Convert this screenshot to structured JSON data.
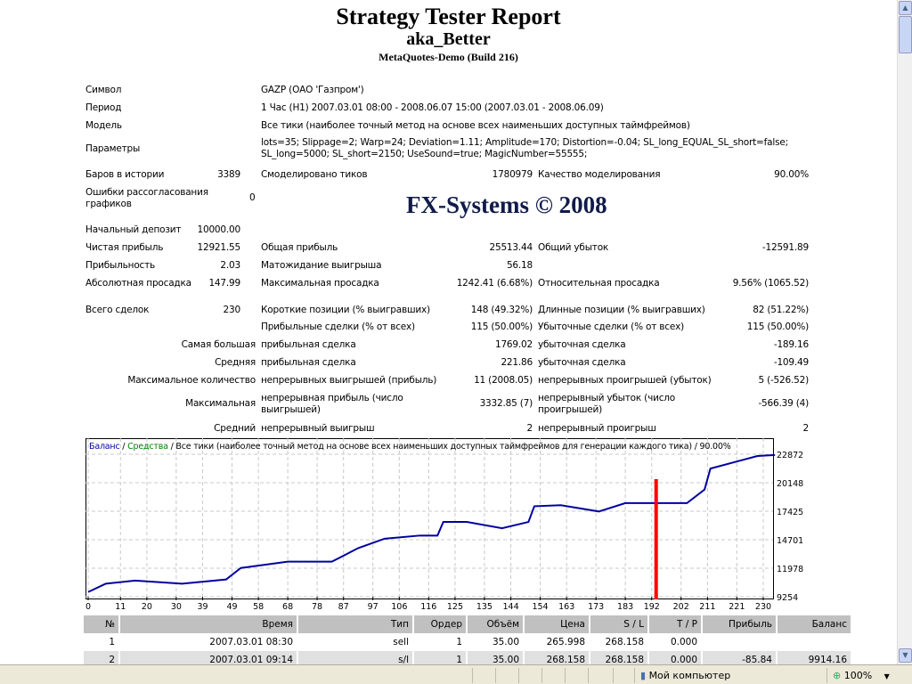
{
  "header": {
    "title": "Strategy Tester Report",
    "expert": "aka_Better",
    "server": "MetaQuotes-Demo (Build 216)",
    "watermark": "FX-Systems © 2008"
  },
  "info": {
    "symbol_label": "Символ",
    "symbol": "GAZP (ОАО 'Газпром')",
    "period_label": "Период",
    "period": "1 Час (H1) 2007.03.01 08:00 - 2008.06.07 15:00 (2007.03.01 - 2008.06.09)",
    "model_label": "Модель",
    "model": "Все тики (наиболее точный метод на основе всех наименьших доступных таймфреймов)",
    "params_label": "Параметры",
    "params1": "lots=35; Slippage=2; Warp=24; Deviation=1.11; Amplitude=170; Distortion=-0.04; SL_long_EQUAL_SL_short=false;",
    "params2": "SL_long=5000; SL_short=2150; UseSound=true; MagicNumber=55555;"
  },
  "stats": [
    {
      "y": 196,
      "c": [
        [
          "Баров в истории",
          "3389"
        ],
        [
          "Смоделировано тиков",
          "1780979"
        ],
        [
          "Качество моделирования",
          "90.00%"
        ]
      ]
    },
    {
      "y": 258,
      "c": [
        [
          "Начальный депозит",
          "10000.00"
        ]
      ]
    },
    {
      "y": 278,
      "c": [
        [
          "Чистая прибыль",
          "12921.55"
        ],
        [
          "Общая прибыль",
          "25513.44"
        ],
        [
          "Общий убыток",
          "-12591.89"
        ]
      ]
    },
    {
      "y": 298,
      "c": [
        [
          "Прибыльность",
          "2.03"
        ],
        [
          "Матожидание выигрыша",
          "56.18"
        ]
      ]
    },
    {
      "y": 318,
      "c": [
        [
          "Абсолютная просадка",
          "147.99"
        ],
        [
          "Максимальная просадка",
          "1242.41 (6.68%)"
        ],
        [
          "Относительная просадка",
          "9.56% (1065.52)"
        ]
      ]
    },
    {
      "y": 348,
      "c": [
        [
          "Всего сделок",
          "230"
        ],
        [
          "Короткие позиции (% выигравших)",
          "148 (49.32%)"
        ],
        [
          "Длинные позиции (% выигравших)",
          "82 (51.22%)"
        ]
      ]
    },
    {
      "y": 367,
      "c": [
        [
          "",
          ""
        ],
        [
          "Прибыльные сделки (% от всех)",
          "115 (50.00%)"
        ],
        [
          "Убыточные сделки (% от всех)",
          "115 (50.00%)"
        ]
      ]
    },
    {
      "y": 387,
      "rl": 1,
      "c": [
        [
          "Самая большая",
          ""
        ],
        [
          "прибыльная сделка",
          "1769.02"
        ],
        [
          "убыточная сделка",
          "-189.16"
        ]
      ]
    },
    {
      "y": 407,
      "rl": 1,
      "c": [
        [
          "Средняя",
          ""
        ],
        [
          "прибыльная сделка",
          "221.86"
        ],
        [
          "убыточная сделка",
          "-109.49"
        ]
      ]
    },
    {
      "y": 427,
      "rl": 1,
      "c": [
        [
          "Максимальное количество",
          ""
        ],
        [
          "непрерывных выигрышей (прибыль)",
          "11 (2008.05)"
        ],
        [
          "непрерывных проигрышей (убыток)",
          "5 (-526.52)"
        ]
      ]
    },
    {
      "y": 481,
      "rl": 1,
      "c": [
        [
          "Средний",
          ""
        ],
        [
          "непрерывный выигрыш",
          "2"
        ],
        [
          "непрерывный проигрыш",
          "2"
        ]
      ]
    }
  ],
  "errors": {
    "label1": "Ошибки рассогласования",
    "label2": "графиков",
    "value": "0"
  },
  "maxrow": {
    "label": "Максимальная",
    "l2a": "непрерывная прибыль (число",
    "l2b": "выигрышей)",
    "v2": "3332.85 (7)",
    "l3a": "непрерывный убыток (число",
    "l3b": "проигрышей)",
    "v3": "-566.39 (4)"
  },
  "chart_data": {
    "type": "line",
    "legend_balance": "Баланс",
    "legend_sep": " / ",
    "legend_equity": "Средства",
    "legend_rest": " / Все тики (наиболее точный метод на основе всех наименьших доступных таймфреймов для генерации каждого тика) / 90.00%",
    "yticks": [
      "22872",
      "20148",
      "17425",
      "14701",
      "11978",
      "9254"
    ],
    "ylim": [
      9254,
      22872
    ],
    "xticks": [
      0,
      11,
      20,
      30,
      39,
      49,
      58,
      68,
      78,
      87,
      97,
      106,
      116,
      125,
      135,
      144,
      154,
      163,
      173,
      183,
      192,
      202,
      211,
      221,
      230
    ],
    "xlim": [
      0,
      230
    ],
    "balance": [
      [
        0,
        9700
      ],
      [
        6,
        10500
      ],
      [
        16,
        10800
      ],
      [
        32,
        10500
      ],
      [
        47,
        10900
      ],
      [
        52,
        12000
      ],
      [
        68,
        12600
      ],
      [
        83,
        12600
      ],
      [
        92,
        13900
      ],
      [
        101,
        14800
      ],
      [
        113,
        15100
      ],
      [
        119,
        15100
      ],
      [
        121,
        16400
      ],
      [
        129,
        16400
      ],
      [
        141,
        15800
      ],
      [
        150,
        16400
      ],
      [
        152,
        17900
      ],
      [
        161,
        18000
      ],
      [
        174,
        17400
      ],
      [
        183,
        18200
      ],
      [
        195,
        18200
      ],
      [
        204,
        18200
      ],
      [
        210,
        19500
      ],
      [
        212,
        21500
      ],
      [
        220,
        22100
      ],
      [
        228,
        22700
      ],
      [
        234,
        22800
      ]
    ],
    "marker_index": 193.5,
    "colors": {
      "balance": "#0000a0",
      "equity": "#008000",
      "marker": "#ff0000"
    }
  },
  "trades": {
    "headers": [
      "№",
      "Время",
      "Тип",
      "Ордер",
      "Объём",
      "Цена",
      "S / L",
      "T / P",
      "Прибыль",
      "Баланс"
    ],
    "rows": [
      [
        "1",
        "2007.03.01 08:30",
        "sell",
        "1",
        "35.00",
        "265.998",
        "268.158",
        "0.000",
        "",
        ""
      ],
      [
        "2",
        "2007.03.01 09:14",
        "s/l",
        "1",
        "35.00",
        "268.158",
        "268.158",
        "0.000",
        "-85.84",
        "9914.16"
      ]
    ]
  },
  "status": {
    "zone": "Мой компьютер",
    "zoom": "100%"
  }
}
